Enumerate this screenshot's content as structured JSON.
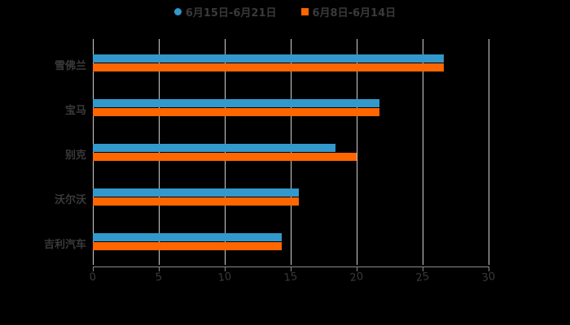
{
  "legend": [
    {
      "label": "6月15日-6月21日",
      "color": "#3399cc",
      "shape": "circle"
    },
    {
      "label": "6月8日-6月14日",
      "color": "#ff6600",
      "shape": "square"
    }
  ],
  "chart_data": {
    "type": "bar",
    "orientation": "horizontal",
    "title": "",
    "xlabel": "",
    "ylabel": "",
    "categories": [
      "雪佛兰",
      "宝马",
      "别克",
      "沃尔沃",
      "吉利汽车"
    ],
    "series": [
      {
        "name": "6月15日-6月21日",
        "color": "#3399cc",
        "values": [
          26.6,
          21.7,
          18.4,
          15.6,
          14.3
        ]
      },
      {
        "name": "6月8日-6月14日",
        "color": "#ff6600",
        "values": [
          26.6,
          21.7,
          20.0,
          15.6,
          14.3
        ]
      }
    ],
    "xlim": [
      0,
      30
    ],
    "xticks": [
      "0",
      "5",
      "10",
      "15",
      "20",
      "25",
      "30"
    ],
    "grid": true,
    "legend_position": "top"
  }
}
